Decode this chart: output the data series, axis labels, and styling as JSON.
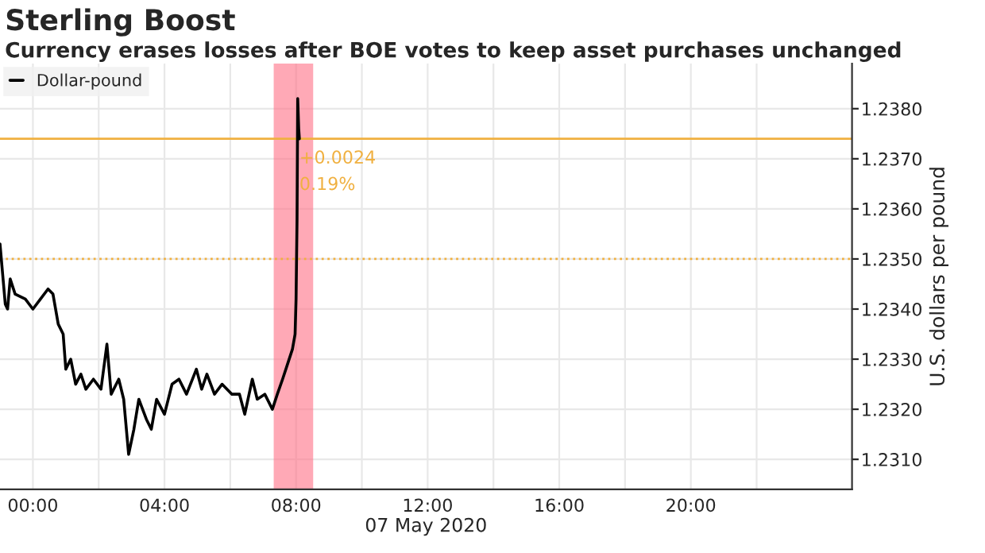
{
  "chart_data": {
    "type": "line",
    "title": "Sterling Boost",
    "subtitle": "Currency erases losses after BOE votes to keep asset purchases unchanged",
    "xlabel": "07 May 2020",
    "ylabel": "U.S. dollars per pound",
    "x": [
      -1.0,
      -0.92,
      -0.84,
      -0.77,
      -0.69,
      -0.54,
      -0.23,
      0,
      0.23,
      0.46,
      0.61,
      0.77,
      0.92,
      1.0,
      1.15,
      1.3,
      1.46,
      1.61,
      1.84,
      2.07,
      2.25,
      2.38,
      2.61,
      2.76,
      2.91,
      3.07,
      3.22,
      3.45,
      3.6,
      3.76,
      4.0,
      4.23,
      4.44,
      4.67,
      4.97,
      5.13,
      5.29,
      5.52,
      5.75,
      6.05,
      6.28,
      6.44,
      6.67,
      6.82,
      7.05,
      7.28,
      7.43,
      7.59,
      7.74,
      7.89,
      7.97,
      8.0,
      8.03,
      8.05,
      8.08,
      8.1
    ],
    "series": [
      {
        "name": "Dollar-pound",
        "color": "#000000",
        "values": [
          1.2353,
          1.2347,
          1.2341,
          1.234,
          1.2346,
          1.2343,
          1.2342,
          1.234,
          1.2342,
          1.2344,
          1.2343,
          1.2337,
          1.2335,
          1.2328,
          1.233,
          1.2325,
          1.2327,
          1.2324,
          1.2326,
          1.2324,
          1.2333,
          1.2323,
          1.2326,
          1.2322,
          1.2311,
          1.2316,
          1.2322,
          1.2318,
          1.2316,
          1.2322,
          1.2319,
          1.2325,
          1.2326,
          1.2323,
          1.2328,
          1.2324,
          1.2327,
          1.2323,
          1.2325,
          1.2323,
          1.2323,
          1.2319,
          1.2326,
          1.2322,
          1.2323,
          1.232,
          1.2323,
          1.2326,
          1.2329,
          1.2332,
          1.2335,
          1.2342,
          1.2358,
          1.2382,
          1.2376,
          1.2374
        ]
      }
    ],
    "xlim": [
      -1.0,
      24.9
    ],
    "ylim": [
      1.2304,
      1.2389
    ],
    "xticks": [
      {
        "value": 0,
        "label": "00:00"
      },
      {
        "value": 2,
        "label": null
      },
      {
        "value": 4,
        "label": "04:00"
      },
      {
        "value": 6,
        "label": null
      },
      {
        "value": 8,
        "label": "08:00"
      },
      {
        "value": 10,
        "label": null
      },
      {
        "value": 12,
        "label": "12:00"
      },
      {
        "value": 14,
        "label": null
      },
      {
        "value": 16,
        "label": "16:00"
      },
      {
        "value": 18,
        "label": null
      },
      {
        "value": 20,
        "label": "20:00"
      },
      {
        "value": 22,
        "label": null
      }
    ],
    "yticks": [
      {
        "value": 1.231,
        "label": "1.2310"
      },
      {
        "value": 1.232,
        "label": "1.2320"
      },
      {
        "value": 1.233,
        "label": "1.2330"
      },
      {
        "value": 1.234,
        "label": "1.2340"
      },
      {
        "value": 1.235,
        "label": "1.2350"
      },
      {
        "value": 1.236,
        "label": "1.2360"
      },
      {
        "value": 1.237,
        "label": "1.2370"
      },
      {
        "value": 1.238,
        "label": "1.2380"
      }
    ],
    "ref_lines": [
      {
        "axis": "y",
        "value": 1.235,
        "color": "#f0b040",
        "line_style": "dotted"
      },
      {
        "axis": "y",
        "value": 1.2374,
        "color": "#f0b040",
        "line_style": "solid"
      }
    ],
    "bands": [
      {
        "axis": "x",
        "from": 7.32,
        "to": 8.52,
        "color": "#ff6f86"
      }
    ],
    "annotations": [
      {
        "text": "+0.0024",
        "x": 8.1,
        "y": 1.2374
      },
      {
        "text": "0.19%",
        "x": 8.1,
        "y": 1.2374
      }
    ],
    "grid": true,
    "legend": "top left",
    "line_style": "solid",
    "marker": "none"
  }
}
